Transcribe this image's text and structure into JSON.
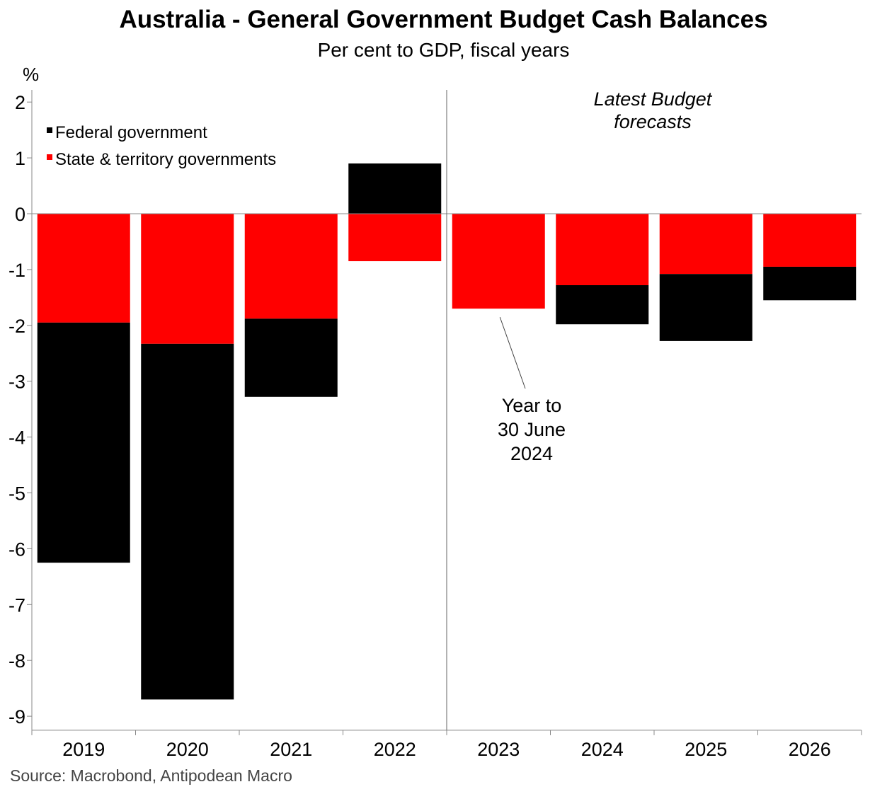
{
  "chart_data": {
    "type": "bar",
    "stacked": true,
    "title": "Australia - General Government Budget Cash Balances",
    "subtitle": "Per cent to GDP, fiscal years",
    "ylabel": "%",
    "ylim": [
      -9.25,
      2.2
    ],
    "yticks": [
      2,
      1,
      0,
      -1,
      -2,
      -3,
      -4,
      -5,
      -6,
      -7,
      -8,
      -9
    ],
    "categories": [
      "2019",
      "2020",
      "2021",
      "2022",
      "2023",
      "2024",
      "2025",
      "2026"
    ],
    "series": [
      {
        "name": "State & territory governments",
        "color": "#ff0000",
        "values": [
          -1.95,
          -2.33,
          -1.88,
          -0.85,
          -1.7,
          -1.28,
          -1.08,
          -0.95
        ]
      },
      {
        "name": "Federal government",
        "color": "#000000",
        "values": [
          -4.3,
          -6.37,
          -1.4,
          0.9,
          0.0,
          -0.7,
          -1.2,
          -0.6
        ]
      }
    ],
    "legend": [
      {
        "name": "Federal government",
        "color": "#000000"
      },
      {
        "name": "State & territory governments",
        "color": "#ff0000"
      }
    ],
    "legend_position": "top-left",
    "forecast_divider_after": "2022",
    "annotations": {
      "forecast_label": [
        "Latest Budget",
        "forecasts"
      ],
      "year_note": [
        "Year to",
        "30 June",
        "2024"
      ],
      "year_note_target": "2023"
    },
    "grid": false
  },
  "source": "Source: Macrobond, Antipodean Macro"
}
